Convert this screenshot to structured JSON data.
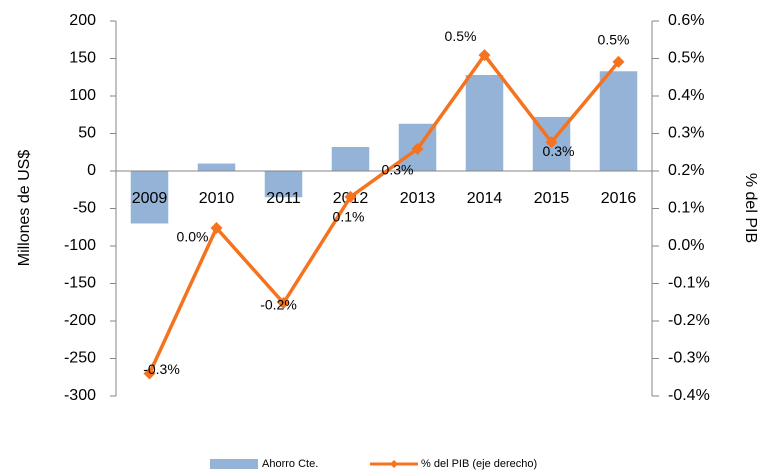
{
  "chart_data": {
    "type": "bar-line",
    "y_label": "Millones de US$",
    "y2_label": "% del PIB",
    "categories": [
      "2009",
      "2010",
      "2011",
      "2012",
      "2013",
      "2014",
      "2015",
      "2016"
    ],
    "series": [
      {
        "name": "Ahorro Cte.",
        "type": "bar",
        "color": "#95b3d7",
        "values": [
          -70,
          10,
          -35,
          32,
          63,
          128,
          72,
          133
        ]
      },
      {
        "name": "% del PIB (eje derecho)",
        "type": "line",
        "axis": "y2",
        "color": "#f5731f",
        "values": [
          -0.34,
          0.048,
          -0.152,
          0.131,
          0.259,
          0.509,
          0.277,
          0.491
        ],
        "value_labels": [
          "-0.3%",
          "0.0%",
          "-0.2%",
          "0.1%",
          "0.3%",
          "0.5%",
          "0.3%",
          "0.5%"
        ]
      }
    ],
    "ylim": [
      -300,
      200
    ],
    "yticks": [
      -300,
      -250,
      -200,
      -150,
      -100,
      -50,
      0,
      50,
      100,
      150,
      200
    ],
    "y2lim": [
      -0.4,
      0.6
    ],
    "y2ticks": [
      {
        "value": -0.4,
        "label": "-0.4%"
      },
      {
        "value": -0.3,
        "label": "-0.3%"
      },
      {
        "value": -0.2,
        "label": "-0.2%"
      },
      {
        "value": -0.1,
        "label": "-0.1%"
      },
      {
        "value": 0.0,
        "label": "0.0%"
      },
      {
        "value": 0.1,
        "label": "0.1%"
      },
      {
        "value": 0.2,
        "label": "0.2%"
      },
      {
        "value": 0.3,
        "label": "0.3%"
      },
      {
        "value": 0.4,
        "label": "0.4%"
      },
      {
        "value": 0.5,
        "label": "0.5%"
      },
      {
        "value": 0.6,
        "label": "0.6%"
      }
    ],
    "legend": "bottom"
  }
}
